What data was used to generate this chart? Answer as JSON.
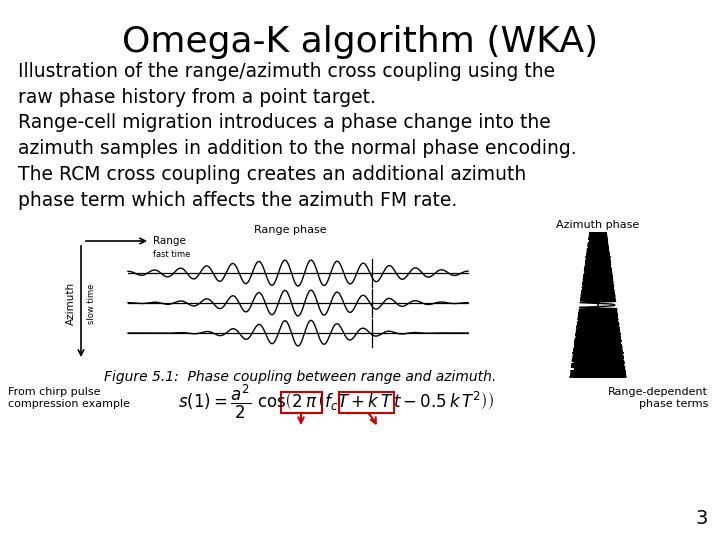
{
  "title": "Omega-K algorithm (WKA)",
  "title_fontsize": 26,
  "body_text": "Illustration of the range/azimuth cross coupling using the\nraw phase history from a point target.\nRange-cell migration introduces a phase change into the\nazimuth samples in addition to the normal phase encoding.\nThe RCM cross coupling creates an additional azimuth\nphase term which affects the azimuth FM rate.",
  "body_fontsize": 13.5,
  "figure_caption": "Figure 5.1:  Phase coupling between range and azimuth.",
  "caption_fontsize": 10,
  "from_label": "From chirp pulse\ncompression example",
  "range_label": "Range-dependent\nphase terms",
  "page_number": "3",
  "bg_color": "#ffffff",
  "text_color": "#000000",
  "red_color": "#cc0000"
}
